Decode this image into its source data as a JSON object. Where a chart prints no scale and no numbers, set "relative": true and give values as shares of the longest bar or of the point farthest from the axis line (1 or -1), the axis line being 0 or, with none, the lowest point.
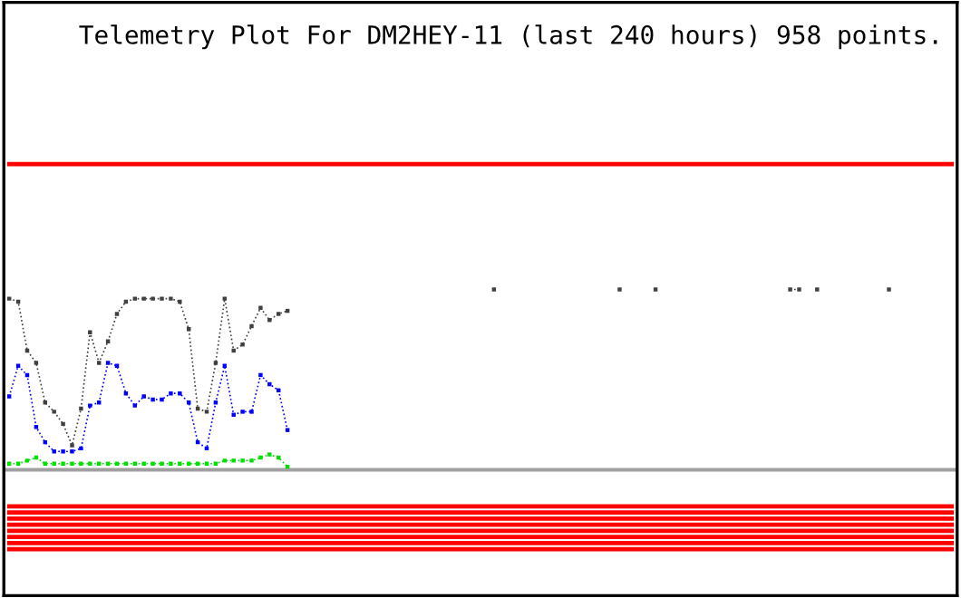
{
  "chart_data": {
    "type": "line",
    "title": "Telemetry Plot For DM2HEY-11 (last 240 hours) 958 points.",
    "relative": true,
    "categories": [
      null,
      null,
      null,
      null,
      null,
      null,
      null,
      null,
      null,
      null,
      null,
      null,
      null,
      null,
      null,
      null,
      null,
      null,
      null,
      null,
      null,
      null,
      null,
      null,
      null,
      null,
      null,
      null,
      null,
      null,
      null,
      null,
      null,
      null,
      null,
      null,
      null,
      null,
      null,
      null,
      null,
      null,
      null,
      null,
      null,
      null,
      null,
      null,
      null,
      null,
      null,
      null,
      null,
      null,
      null,
      null,
      null,
      null,
      null,
      null,
      null,
      null,
      null,
      null,
      null,
      null,
      null,
      null,
      null,
      null,
      null,
      null,
      null,
      null,
      null,
      null,
      null,
      null,
      null,
      null,
      null,
      null,
      null,
      null,
      null,
      null,
      null,
      null,
      null,
      null,
      null,
      null,
      null,
      null,
      null,
      null,
      null,
      null,
      null,
      null,
      null,
      null,
      null,
      null,
      null,
      null
    ],
    "series": [
      {
        "color": "#404040",
        "marker": "square",
        "line_style": "dotted",
        "values": [
          0.56,
          0.55,
          0.39,
          0.35,
          0.22,
          0.19,
          0.15,
          0.08,
          0.2,
          0.45,
          0.35,
          0.42,
          0.51,
          0.55,
          0.56,
          0.56,
          0.56,
          0.56,
          0.56,
          0.55,
          0.46,
          0.2,
          0.19,
          0.35,
          0.56,
          0.39,
          0.41,
          0.47,
          0.53,
          0.49,
          0.51,
          0.52,
          null,
          null,
          null,
          null,
          null,
          null,
          null,
          null,
          null,
          null,
          null,
          null,
          null,
          null,
          null,
          null,
          null,
          null,
          null,
          null,
          null,
          null,
          0.59,
          null,
          null,
          null,
          null,
          null,
          null,
          null,
          null,
          null,
          null,
          null,
          null,
          null,
          0.59,
          null,
          null,
          null,
          0.59,
          null,
          null,
          null,
          null,
          null,
          null,
          null,
          null,
          null,
          null,
          null,
          null,
          null,
          null,
          0.59,
          0.59,
          null,
          0.59,
          null,
          null,
          null,
          null,
          null,
          null,
          null,
          0.59,
          null,
          null,
          null,
          null,
          null,
          null,
          null
        ]
      },
      {
        "color": "#0000ff",
        "marker": "square",
        "line_style": "dotted",
        "values": [
          0.24,
          0.34,
          0.31,
          0.14,
          0.09,
          0.06,
          0.06,
          0.06,
          0.07,
          0.21,
          0.22,
          0.35,
          0.34,
          0.25,
          0.21,
          0.24,
          0.23,
          0.23,
          0.25,
          0.25,
          0.22,
          0.09,
          0.07,
          0.22,
          0.34,
          0.18,
          0.19,
          0.19,
          0.31,
          0.28,
          0.26,
          0.13,
          null,
          null,
          null,
          null,
          null,
          null,
          null,
          null,
          null,
          null,
          null,
          null,
          null,
          null,
          null,
          null,
          null,
          null,
          null,
          null,
          null,
          null,
          null,
          null,
          null,
          null,
          null,
          null,
          null,
          null,
          null,
          null,
          null,
          null,
          null,
          null,
          null,
          null,
          null,
          null,
          null,
          null,
          null,
          null,
          null,
          null,
          null,
          null,
          null,
          null,
          null,
          null,
          null,
          null,
          null,
          null,
          null,
          null,
          null,
          null,
          null,
          null,
          null,
          null,
          null,
          null,
          null,
          null,
          null,
          null,
          null,
          null,
          null,
          null
        ]
      },
      {
        "color": "#00e000",
        "marker": "square",
        "line_style": "dotted",
        "values": [
          0.02,
          0.02,
          0.03,
          0.04,
          0.02,
          0.02,
          0.02,
          0.02,
          0.02,
          0.02,
          0.02,
          0.02,
          0.02,
          0.02,
          0.02,
          0.02,
          0.02,
          0.02,
          0.02,
          0.02,
          0.02,
          0.02,
          0.02,
          0.02,
          0.03,
          0.03,
          0.03,
          0.03,
          0.04,
          0.05,
          0.04,
          0.01,
          null,
          null,
          null,
          null,
          null,
          null,
          null,
          null,
          null,
          null,
          null,
          null,
          null,
          null,
          null,
          null,
          null,
          null,
          null,
          null,
          null,
          null,
          null,
          null,
          null,
          null,
          null,
          null,
          null,
          null,
          null,
          null,
          null,
          null,
          null,
          null,
          null,
          null,
          null,
          null,
          null,
          null,
          null,
          null,
          null,
          null,
          null,
          null,
          null,
          null,
          null,
          null,
          null,
          null,
          null,
          null,
          null,
          null,
          null,
          null,
          null,
          null,
          null,
          null,
          null,
          null,
          null,
          null,
          null,
          null,
          null,
          null,
          null,
          null
        ]
      },
      {
        "color": "#ff0000",
        "line_style": "solid",
        "values": [
          1,
          1,
          1,
          1,
          1,
          1,
          1,
          1,
          1,
          1,
          1,
          1,
          1,
          1,
          1,
          1,
          1,
          1,
          1,
          1,
          1,
          1,
          1,
          1,
          1,
          1,
          1,
          1,
          1,
          1,
          1,
          1,
          1,
          1,
          1,
          1,
          1,
          1,
          1,
          1,
          1,
          1,
          1,
          1,
          1,
          1,
          1,
          1,
          1,
          1,
          1,
          1,
          1,
          1,
          1,
          1,
          1,
          1,
          1,
          1,
          1,
          1,
          1,
          1,
          1,
          1,
          1,
          1,
          1,
          1,
          1,
          1,
          1,
          1,
          1,
          1,
          1,
          1,
          1,
          1,
          1,
          1,
          1,
          1,
          1,
          1,
          1,
          1,
          1,
          1,
          1,
          1,
          1,
          1,
          1,
          1,
          1,
          1,
          1,
          1,
          1,
          1,
          1,
          1,
          1,
          1
        ]
      },
      {
        "color": "#ff0000",
        "line_style": "solid",
        "values": [
          -0.12,
          -0.12,
          -0.12,
          -0.12,
          -0.12,
          -0.12,
          -0.12,
          -0.12,
          -0.12,
          -0.12,
          -0.12,
          -0.12,
          -0.12,
          -0.12,
          -0.12,
          -0.12,
          -0.12,
          -0.12,
          -0.12,
          -0.12,
          -0.12,
          -0.12,
          -0.12,
          -0.12,
          -0.12,
          -0.12,
          -0.12,
          -0.12,
          -0.12,
          -0.12,
          -0.12,
          -0.12,
          -0.12,
          -0.12,
          -0.12,
          -0.12,
          -0.12,
          -0.12,
          -0.12,
          -0.12,
          -0.12,
          -0.12,
          -0.12,
          -0.12,
          -0.12,
          -0.12,
          -0.12,
          -0.12,
          -0.12,
          -0.12,
          -0.12,
          -0.12,
          -0.12,
          -0.12,
          -0.12,
          -0.12,
          -0.12,
          -0.12,
          -0.12,
          -0.12,
          -0.12,
          -0.12,
          -0.12,
          -0.12,
          -0.12,
          -0.12,
          -0.12,
          -0.12,
          -0.12,
          -0.12,
          -0.12,
          -0.12,
          -0.12,
          -0.12,
          -0.12,
          -0.12,
          -0.12,
          -0.12,
          -0.12,
          -0.12,
          -0.12,
          -0.12,
          -0.12,
          -0.12,
          -0.12,
          -0.12,
          -0.12,
          -0.12,
          -0.12,
          -0.12,
          -0.12,
          -0.12,
          -0.12,
          -0.12,
          -0.12,
          -0.12,
          -0.12,
          -0.12,
          -0.12,
          -0.12,
          -0.12,
          -0.12,
          -0.12,
          -0.12,
          -0.12,
          -0.12
        ]
      },
      {
        "color": "#ff0000",
        "line_style": "solid",
        "values": [
          -0.14,
          -0.14,
          -0.14,
          -0.14,
          -0.14,
          -0.14,
          -0.14,
          -0.14,
          -0.14,
          -0.14,
          -0.14,
          -0.14,
          -0.14,
          -0.14,
          -0.14,
          -0.14,
          -0.14,
          -0.14,
          -0.14,
          -0.14,
          -0.14,
          -0.14,
          -0.14,
          -0.14,
          -0.14,
          -0.14,
          -0.14,
          -0.14,
          -0.14,
          -0.14,
          -0.14,
          -0.14,
          -0.14,
          -0.14,
          -0.14,
          -0.14,
          -0.14,
          -0.14,
          -0.14,
          -0.14,
          -0.14,
          -0.14,
          -0.14,
          -0.14,
          -0.14,
          -0.14,
          -0.14,
          -0.14,
          -0.14,
          -0.14,
          -0.14,
          -0.14,
          -0.14,
          -0.14,
          -0.14,
          -0.14,
          -0.14,
          -0.14,
          -0.14,
          -0.14,
          -0.14,
          -0.14,
          -0.14,
          -0.14,
          -0.14,
          -0.14,
          -0.14,
          -0.14,
          -0.14,
          -0.14,
          -0.14,
          -0.14,
          -0.14,
          -0.14,
          -0.14,
          -0.14,
          -0.14,
          -0.14,
          -0.14,
          -0.14,
          -0.14,
          -0.14,
          -0.14,
          -0.14,
          -0.14,
          -0.14,
          -0.14,
          -0.14,
          -0.14,
          -0.14,
          -0.14,
          -0.14,
          -0.14,
          -0.14,
          -0.14,
          -0.14,
          -0.14,
          -0.14,
          -0.14,
          -0.14,
          -0.14,
          -0.14,
          -0.14,
          -0.14,
          -0.14,
          -0.14
        ]
      },
      {
        "color": "#ff0000",
        "line_style": "solid",
        "values": [
          -0.16,
          -0.16,
          -0.16,
          -0.16,
          -0.16,
          -0.16,
          -0.16,
          -0.16,
          -0.16,
          -0.16,
          -0.16,
          -0.16,
          -0.16,
          -0.16,
          -0.16,
          -0.16,
          -0.16,
          -0.16,
          -0.16,
          -0.16,
          -0.16,
          -0.16,
          -0.16,
          -0.16,
          -0.16,
          -0.16,
          -0.16,
          -0.16,
          -0.16,
          -0.16,
          -0.16,
          -0.16,
          -0.16,
          -0.16,
          -0.16,
          -0.16,
          -0.16,
          -0.16,
          -0.16,
          -0.16,
          -0.16,
          -0.16,
          -0.16,
          -0.16,
          -0.16,
          -0.16,
          -0.16,
          -0.16,
          -0.16,
          -0.16,
          -0.16,
          -0.16,
          -0.16,
          -0.16,
          -0.16,
          -0.16,
          -0.16,
          -0.16,
          -0.16,
          -0.16,
          -0.16,
          -0.16,
          -0.16,
          -0.16,
          -0.16,
          -0.16,
          -0.16,
          -0.16,
          -0.16,
          -0.16,
          -0.16,
          -0.16,
          -0.16,
          -0.16,
          -0.16,
          -0.16,
          -0.16,
          -0.16,
          -0.16,
          -0.16,
          -0.16,
          -0.16,
          -0.16,
          -0.16,
          -0.16,
          -0.16,
          -0.16,
          -0.16,
          -0.16,
          -0.16,
          -0.16,
          -0.16,
          -0.16,
          -0.16,
          -0.16,
          -0.16,
          -0.16,
          -0.16,
          -0.16,
          -0.16,
          -0.16,
          -0.16,
          -0.16,
          -0.16,
          -0.16,
          -0.16
        ]
      },
      {
        "color": "#ff0000",
        "line_style": "solid",
        "values": [
          -0.18,
          -0.18,
          -0.18,
          -0.18,
          -0.18,
          -0.18,
          -0.18,
          -0.18,
          -0.18,
          -0.18,
          -0.18,
          -0.18,
          -0.18,
          -0.18,
          -0.18,
          -0.18,
          -0.18,
          -0.18,
          -0.18,
          -0.18,
          -0.18,
          -0.18,
          -0.18,
          -0.18,
          -0.18,
          -0.18,
          -0.18,
          -0.18,
          -0.18,
          -0.18,
          -0.18,
          -0.18,
          -0.18,
          -0.18,
          -0.18,
          -0.18,
          -0.18,
          -0.18,
          -0.18,
          -0.18,
          -0.18,
          -0.18,
          -0.18,
          -0.18,
          -0.18,
          -0.18,
          -0.18,
          -0.18,
          -0.18,
          -0.18,
          -0.18,
          -0.18,
          -0.18,
          -0.18,
          -0.18,
          -0.18,
          -0.18,
          -0.18,
          -0.18,
          -0.18,
          -0.18,
          -0.18,
          -0.18,
          -0.18,
          -0.18,
          -0.18,
          -0.18,
          -0.18,
          -0.18,
          -0.18,
          -0.18,
          -0.18,
          -0.18,
          -0.18,
          -0.18,
          -0.18,
          -0.18,
          -0.18,
          -0.18,
          -0.18,
          -0.18,
          -0.18,
          -0.18,
          -0.18,
          -0.18,
          -0.18,
          -0.18,
          -0.18,
          -0.18,
          -0.18,
          -0.18,
          -0.18,
          -0.18,
          -0.18,
          -0.18,
          -0.18,
          -0.18,
          -0.18,
          -0.18,
          -0.18,
          -0.18,
          -0.18,
          -0.18,
          -0.18,
          -0.18,
          -0.18
        ]
      },
      {
        "color": "#ff0000",
        "line_style": "solid",
        "values": [
          -0.2,
          -0.2,
          -0.2,
          -0.2,
          -0.2,
          -0.2,
          -0.2,
          -0.2,
          -0.2,
          -0.2,
          -0.2,
          -0.2,
          -0.2,
          -0.2,
          -0.2,
          -0.2,
          -0.2,
          -0.2,
          -0.2,
          -0.2,
          -0.2,
          -0.2,
          -0.2,
          -0.2,
          -0.2,
          -0.2,
          -0.2,
          -0.2,
          -0.2,
          -0.2,
          -0.2,
          -0.2,
          -0.2,
          -0.2,
          -0.2,
          -0.2,
          -0.2,
          -0.2,
          -0.2,
          -0.2,
          -0.2,
          -0.2,
          -0.2,
          -0.2,
          -0.2,
          -0.2,
          -0.2,
          -0.2,
          -0.2,
          -0.2,
          -0.2,
          -0.2,
          -0.2,
          -0.2,
          -0.2,
          -0.2,
          -0.2,
          -0.2,
          -0.2,
          -0.2,
          -0.2,
          -0.2,
          -0.2,
          -0.2,
          -0.2,
          -0.2,
          -0.2,
          -0.2,
          -0.2,
          -0.2,
          -0.2,
          -0.2,
          -0.2,
          -0.2,
          -0.2,
          -0.2,
          -0.2,
          -0.2,
          -0.2,
          -0.2,
          -0.2,
          -0.2,
          -0.2,
          -0.2,
          -0.2,
          -0.2,
          -0.2,
          -0.2,
          -0.2,
          -0.2,
          -0.2,
          -0.2,
          -0.2,
          -0.2,
          -0.2,
          -0.2,
          -0.2,
          -0.2,
          -0.2,
          -0.2,
          -0.2,
          -0.2,
          -0.2,
          -0.2,
          -0.2,
          -0.2
        ]
      },
      {
        "color": "#ff0000",
        "line_style": "solid",
        "values": [
          -0.22,
          -0.22,
          -0.22,
          -0.22,
          -0.22,
          -0.22,
          -0.22,
          -0.22,
          -0.22,
          -0.22,
          -0.22,
          -0.22,
          -0.22,
          -0.22,
          -0.22,
          -0.22,
          -0.22,
          -0.22,
          -0.22,
          -0.22,
          -0.22,
          -0.22,
          -0.22,
          -0.22,
          -0.22,
          -0.22,
          -0.22,
          -0.22,
          -0.22,
          -0.22,
          -0.22,
          -0.22,
          -0.22,
          -0.22,
          -0.22,
          -0.22,
          -0.22,
          -0.22,
          -0.22,
          -0.22,
          -0.22,
          -0.22,
          -0.22,
          -0.22,
          -0.22,
          -0.22,
          -0.22,
          -0.22,
          -0.22,
          -0.22,
          -0.22,
          -0.22,
          -0.22,
          -0.22,
          -0.22,
          -0.22,
          -0.22,
          -0.22,
          -0.22,
          -0.22,
          -0.22,
          -0.22,
          -0.22,
          -0.22,
          -0.22,
          -0.22,
          -0.22,
          -0.22,
          -0.22,
          -0.22,
          -0.22,
          -0.22,
          -0.22,
          -0.22,
          -0.22,
          -0.22,
          -0.22,
          -0.22,
          -0.22,
          -0.22,
          -0.22,
          -0.22,
          -0.22,
          -0.22,
          -0.22,
          -0.22,
          -0.22,
          -0.22,
          -0.22,
          -0.22,
          -0.22,
          -0.22,
          -0.22,
          -0.22,
          -0.22,
          -0.22,
          -0.22,
          -0.22,
          -0.22,
          -0.22,
          -0.22,
          -0.22,
          -0.22,
          -0.22,
          -0.22,
          -0.22
        ]
      },
      {
        "color": "#ff0000",
        "line_style": "solid",
        "values": [
          -0.24,
          -0.24,
          -0.24,
          -0.24,
          -0.24,
          -0.24,
          -0.24,
          -0.24,
          -0.24,
          -0.24,
          -0.24,
          -0.24,
          -0.24,
          -0.24,
          -0.24,
          -0.24,
          -0.24,
          -0.24,
          -0.24,
          -0.24,
          -0.24,
          -0.24,
          -0.24,
          -0.24,
          -0.24,
          -0.24,
          -0.24,
          -0.24,
          -0.24,
          -0.24,
          -0.24,
          -0.24,
          -0.24,
          -0.24,
          -0.24,
          -0.24,
          -0.24,
          -0.24,
          -0.24,
          -0.24,
          -0.24,
          -0.24,
          -0.24,
          -0.24,
          -0.24,
          -0.24,
          -0.24,
          -0.24,
          -0.24,
          -0.24,
          -0.24,
          -0.24,
          -0.24,
          -0.24,
          -0.24,
          -0.24,
          -0.24,
          -0.24,
          -0.24,
          -0.24,
          -0.24,
          -0.24,
          -0.24,
          -0.24,
          -0.24,
          -0.24,
          -0.24,
          -0.24,
          -0.24,
          -0.24,
          -0.24,
          -0.24,
          -0.24,
          -0.24,
          -0.24,
          -0.24,
          -0.24,
          -0.24,
          -0.24,
          -0.24,
          -0.24,
          -0.24,
          -0.24,
          -0.24,
          -0.24,
          -0.24,
          -0.24,
          -0.24,
          -0.24,
          -0.24,
          -0.24,
          -0.24,
          -0.24,
          -0.24,
          -0.24,
          -0.24,
          -0.24,
          -0.24,
          -0.24,
          -0.24,
          -0.24,
          -0.24,
          -0.24,
          -0.24,
          -0.24,
          -0.24
        ]
      },
      {
        "color": "#ff0000",
        "line_style": "solid",
        "values": [
          -0.26,
          -0.26,
          -0.26,
          -0.26,
          -0.26,
          -0.26,
          -0.26,
          -0.26,
          -0.26,
          -0.26,
          -0.26,
          -0.26,
          -0.26,
          -0.26,
          -0.26,
          -0.26,
          -0.26,
          -0.26,
          -0.26,
          -0.26,
          -0.26,
          -0.26,
          -0.26,
          -0.26,
          -0.26,
          -0.26,
          -0.26,
          -0.26,
          -0.26,
          -0.26,
          -0.26,
          -0.26,
          -0.26,
          -0.26,
          -0.26,
          -0.26,
          -0.26,
          -0.26,
          -0.26,
          -0.26,
          -0.26,
          -0.26,
          -0.26,
          -0.26,
          -0.26,
          -0.26,
          -0.26,
          -0.26,
          -0.26,
          -0.26,
          -0.26,
          -0.26,
          -0.26,
          -0.26,
          -0.26,
          -0.26,
          -0.26,
          -0.26,
          -0.26,
          -0.26,
          -0.26,
          -0.26,
          -0.26,
          -0.26,
          -0.26,
          -0.26,
          -0.26,
          -0.26,
          -0.26,
          -0.26,
          -0.26,
          -0.26,
          -0.26,
          -0.26,
          -0.26,
          -0.26,
          -0.26,
          -0.26,
          -0.26,
          -0.26,
          -0.26,
          -0.26,
          -0.26,
          -0.26,
          -0.26,
          -0.26,
          -0.26,
          -0.26,
          -0.26,
          -0.26,
          -0.26,
          -0.26,
          -0.26,
          -0.26,
          -0.26,
          -0.26,
          -0.26,
          -0.26,
          -0.26,
          -0.26,
          -0.26,
          -0.26,
          -0.26,
          -0.26,
          -0.26,
          -0.26
        ]
      }
    ]
  }
}
